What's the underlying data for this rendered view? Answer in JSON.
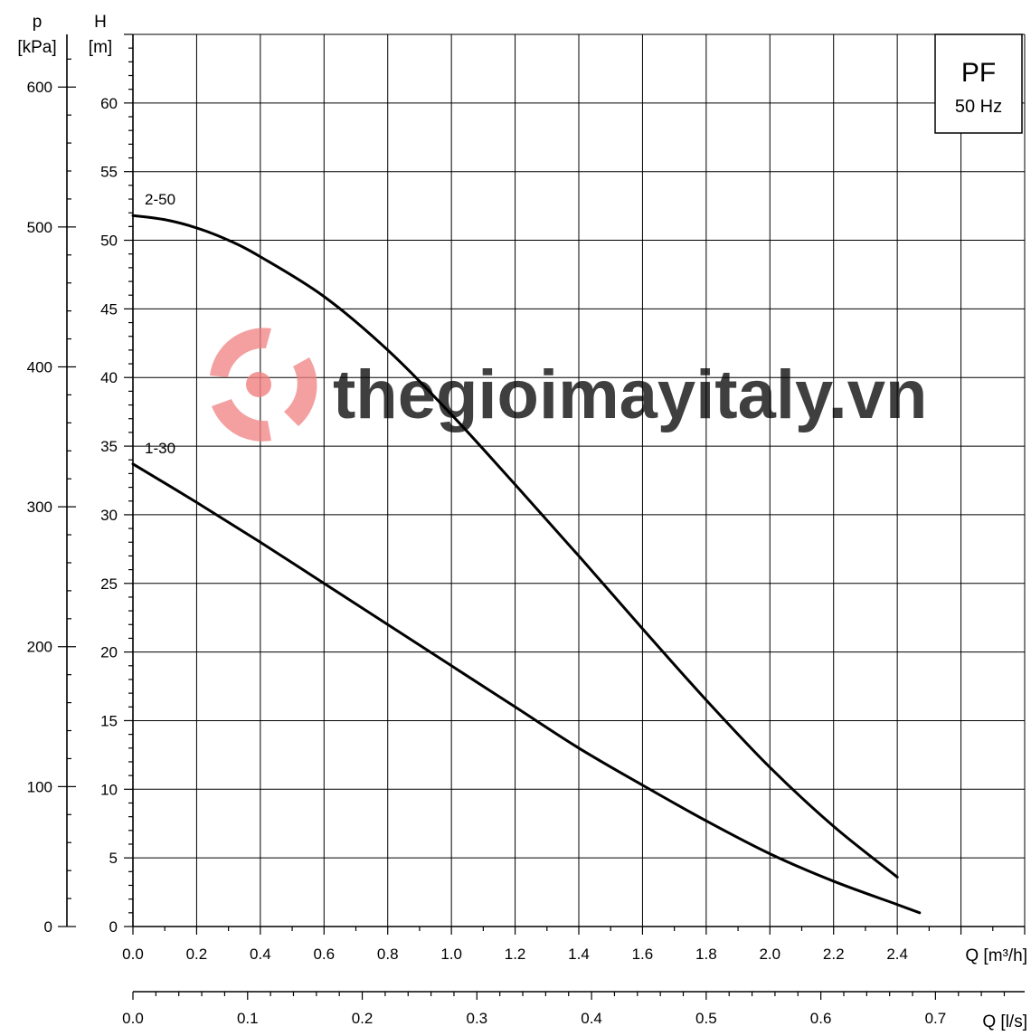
{
  "chart_data": {
    "type": "line",
    "badge": {
      "title": "PF",
      "subtitle": "50 Hz"
    },
    "xlabel": "Q [m³/h]",
    "xlabel2": "Q [l/s]",
    "ylabel_H": "H",
    "ylabel_H_unit": "[m]",
    "ylabel_p": "p",
    "ylabel_p_unit": "[kPa]",
    "xlim": [
      0,
      2.8
    ],
    "ylim": [
      0,
      65
    ],
    "x_ticks": [
      "0.0",
      "0.2",
      "0.4",
      "0.6",
      "0.8",
      "1.0",
      "1.2",
      "1.4",
      "1.6",
      "1.8",
      "2.0",
      "2.2",
      "2.4"
    ],
    "x2_ticks": [
      "0.0",
      "0.1",
      "0.2",
      "0.3",
      "0.4",
      "0.5",
      "0.6",
      "0.7"
    ],
    "y_ticks": [
      "0",
      "5",
      "10",
      "15",
      "20",
      "25",
      "30",
      "35",
      "40",
      "45",
      "50",
      "55",
      "60"
    ],
    "p_ticks": [
      "0",
      "100",
      "200",
      "300",
      "400",
      "500",
      "600"
    ],
    "grid": true,
    "series": [
      {
        "name": "2-50",
        "x": [
          0,
          0.1,
          0.2,
          0.3,
          0.4,
          0.6,
          0.8,
          1.0,
          1.2,
          1.4,
          1.6,
          1.8,
          2.0,
          2.2,
          2.4
        ],
        "y": [
          51.8,
          51.5,
          50.9,
          50.0,
          48.8,
          45.9,
          42.0,
          37.3,
          32.2,
          27.0,
          21.7,
          16.5,
          11.6,
          7.3,
          3.6
        ]
      },
      {
        "name": "1-30",
        "x": [
          0,
          0.2,
          0.4,
          0.6,
          0.8,
          1.0,
          1.2,
          1.4,
          1.6,
          1.8,
          2.0,
          2.2,
          2.4,
          2.47
        ],
        "y": [
          33.7,
          30.9,
          28.0,
          25.0,
          22.0,
          19.0,
          16.0,
          13.0,
          10.3,
          7.7,
          5.3,
          3.3,
          1.6,
          1.0
        ]
      }
    ],
    "watermark": "thegioimayitaly.vn"
  }
}
